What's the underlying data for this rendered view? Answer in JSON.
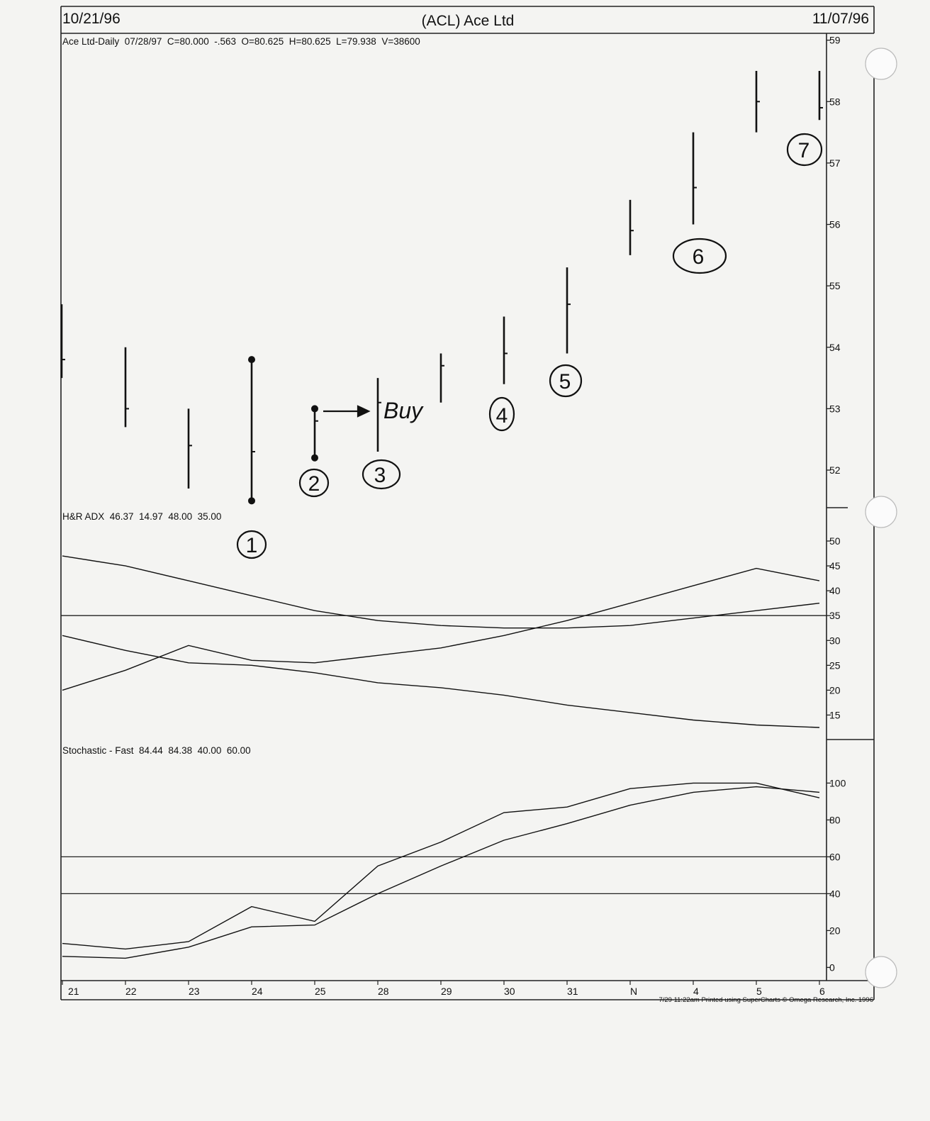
{
  "header": {
    "left_date": "10/21/96",
    "title": "(ACL) Ace Ltd",
    "right_date": "11/07/96",
    "subtitle": "Ace Ltd-Daily  07/28/97  C=80.000  -.563  O=80.625  H=80.625  L=79.938  V=38600"
  },
  "footer": {
    "printed": "7/29 11:22am Printed using SuperCharts © Omega Research, Inc. 1996"
  },
  "annotations": {
    "buy": "Buy",
    "markers": [
      "1",
      "2",
      "3",
      "4",
      "5",
      "6",
      "7"
    ]
  },
  "chart_data": [
    {
      "type": "bar",
      "name": "price-ohlc",
      "categories": [
        "21",
        "22",
        "23",
        "24",
        "25",
        "28",
        "29",
        "30",
        "31",
        "N",
        "4",
        "5",
        "6"
      ],
      "series": [
        {
          "high": [
            54.7,
            54.0,
            53.0,
            53.8,
            53.0,
            53.5,
            53.9,
            54.5,
            55.3,
            56.4,
            57.5,
            58.5,
            58.5
          ],
          "low": [
            53.5,
            52.7,
            51.7,
            51.5,
            52.2,
            52.3,
            53.1,
            53.4,
            53.9,
            55.5,
            56.0,
            57.5,
            57.7
          ],
          "close": [
            53.8,
            53.0,
            52.4,
            52.3,
            52.8,
            53.1,
            53.7,
            53.9,
            54.7,
            55.9,
            56.6,
            58.0,
            57.9
          ]
        }
      ],
      "y_ticks": [
        52,
        53,
        54,
        55,
        56,
        57,
        58,
        59
      ],
      "ylim": [
        51.4,
        59.1
      ]
    },
    {
      "type": "line",
      "title": "H&R ADX  46.37  14.97  48.00  35.00",
      "categories": [
        "21",
        "22",
        "23",
        "24",
        "25",
        "28",
        "29",
        "30",
        "31",
        "N",
        "4",
        "5",
        "6"
      ],
      "series": [
        {
          "values": [
            47,
            45,
            42,
            39,
            36,
            34,
            33,
            32.5,
            32.5,
            33,
            34.5,
            36,
            37.5
          ]
        },
        {
          "values": [
            20,
            24,
            29,
            26,
            25.5,
            27,
            28.5,
            31,
            34,
            37.5,
            41,
            44.5,
            42
          ]
        },
        {
          "values": [
            31,
            28,
            25.5,
            25,
            23.5,
            21.5,
            20.5,
            19,
            17,
            15.5,
            14,
            13,
            12.5
          ]
        }
      ],
      "reference_lines": [
        35
      ],
      "y_ticks": [
        15,
        20,
        25,
        30,
        35,
        40,
        45,
        50
      ],
      "ylim": [
        10.5,
        53
      ]
    },
    {
      "type": "line",
      "title": "Stochastic - Fast  84.44  84.38  40.00  60.00",
      "categories": [
        "21",
        "22",
        "23",
        "24",
        "25",
        "28",
        "29",
        "30",
        "31",
        "N",
        "4",
        "5",
        "6"
      ],
      "series": [
        {
          "values": [
            13,
            10,
            14,
            33,
            25,
            55,
            68,
            84,
            87,
            97,
            100,
            100,
            92
          ]
        },
        {
          "values": [
            6,
            5,
            11,
            22,
            23,
            40,
            55,
            69,
            78,
            88,
            95,
            98,
            95
          ]
        }
      ],
      "reference_lines": [
        40,
        60
      ],
      "y_ticks": [
        0,
        20,
        40,
        60,
        80,
        100
      ],
      "ylim": [
        -6,
        114
      ]
    }
  ]
}
